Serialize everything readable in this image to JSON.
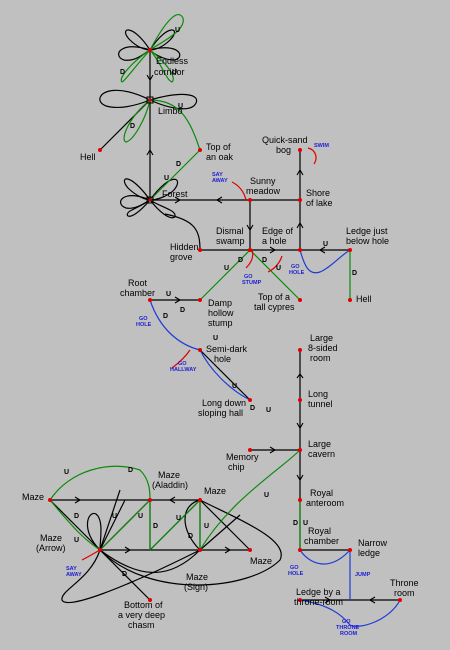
{
  "colors": {
    "background": "#c0c0c0",
    "passage": "#000000",
    "up_down_passage": "#0a8a0a",
    "special_action": "#1d3dd6",
    "location_dot": "#e00000"
  },
  "locations": [
    {
      "id": "endless-corridor",
      "label": [
        "Endless",
        "corridor"
      ]
    },
    {
      "id": "limbo",
      "label": [
        "Limbo"
      ]
    },
    {
      "id": "hell-top",
      "label": [
        "Hell"
      ]
    },
    {
      "id": "top-of-an-oak",
      "label": [
        "Top of",
        "an oak"
      ]
    },
    {
      "id": "quick-sand-bog",
      "label": [
        "Quick-sand",
        "bog"
      ]
    },
    {
      "id": "sunny-meadow",
      "label": [
        "Sunny",
        "meadow"
      ]
    },
    {
      "id": "forest",
      "label": [
        "Forest"
      ]
    },
    {
      "id": "shore-of-lake",
      "label": [
        "Shore",
        "of lake"
      ]
    },
    {
      "id": "dismal-swamp",
      "label": [
        "Dismal",
        "swamp"
      ]
    },
    {
      "id": "edge-of-a-hole",
      "label": [
        "Edge of",
        "a hole"
      ]
    },
    {
      "id": "ledge-below-hole",
      "label": [
        "Ledge just",
        "below hole"
      ]
    },
    {
      "id": "hidden-grove",
      "label": [
        "Hidden",
        "grove"
      ]
    },
    {
      "id": "root-chamber",
      "label": [
        "Root",
        "chamber"
      ]
    },
    {
      "id": "top-of-tall-cypres",
      "label": [
        "Top of a",
        "tall cypres"
      ]
    },
    {
      "id": "hell-right",
      "label": [
        "Hell"
      ]
    },
    {
      "id": "damp-hollow-stump",
      "label": [
        "Damp",
        "hollow",
        "stump"
      ]
    },
    {
      "id": "large-8-sided-room",
      "label": [
        "Large",
        "8-sided",
        "room"
      ]
    },
    {
      "id": "semi-dark-hole",
      "label": [
        "Semi-dark",
        "hole"
      ]
    },
    {
      "id": "long-tunnel",
      "label": [
        "Long",
        "tunnel"
      ]
    },
    {
      "id": "long-down-sloping-hall",
      "label": [
        "Long down",
        "sloping hall"
      ]
    },
    {
      "id": "large-cavern",
      "label": [
        "Large",
        "cavern"
      ]
    },
    {
      "id": "memory-chip",
      "label": [
        "Memory",
        "chip"
      ]
    },
    {
      "id": "maze-aladdin",
      "label": [
        "Maze",
        "(Aladdin)"
      ]
    },
    {
      "id": "maze-left",
      "label": [
        "Maze"
      ]
    },
    {
      "id": "maze-center",
      "label": [
        "Maze"
      ]
    },
    {
      "id": "royal-anteroom",
      "label": [
        "Royal",
        "anteroom"
      ]
    },
    {
      "id": "royal-chamber",
      "label": [
        "Royal",
        "chamber"
      ]
    },
    {
      "id": "maze-arrow",
      "label": [
        "Maze",
        "(Arrow)"
      ]
    },
    {
      "id": "narrow-ledge",
      "label": [
        "Narrow",
        "ledge"
      ]
    },
    {
      "id": "maze-right",
      "label": [
        "Maze"
      ]
    },
    {
      "id": "maze-sign",
      "label": [
        "Maze",
        "(Sign)"
      ]
    },
    {
      "id": "throne-room",
      "label": [
        "Throne",
        "room"
      ]
    },
    {
      "id": "ledge-by-throne-room",
      "label": [
        "Ledge by a",
        "throne-room"
      ]
    },
    {
      "id": "bottom-of-chasm",
      "label": [
        "Bottom of",
        "a very deep",
        "chasm"
      ]
    }
  ],
  "actions": [
    {
      "id": "say-away-forest",
      "label": [
        "SAY",
        "AWAY"
      ]
    },
    {
      "id": "swim",
      "label": [
        "SWIM"
      ]
    },
    {
      "id": "go-stump",
      "label": [
        "GO",
        "STUMP"
      ]
    },
    {
      "id": "go-hole-lake",
      "label": [
        "GO",
        "HOLE"
      ]
    },
    {
      "id": "go-hole-root",
      "label": [
        "GO",
        "HOLE"
      ]
    },
    {
      "id": "go-hallway",
      "label": [
        "GO",
        "HALLWAY"
      ]
    },
    {
      "id": "say-away-maze",
      "label": [
        "SAY",
        "AWAY"
      ]
    },
    {
      "id": "go-hole-royal",
      "label": [
        "GO",
        "HOLE"
      ]
    },
    {
      "id": "jump",
      "label": [
        "JUMP"
      ]
    },
    {
      "id": "go-throne-room",
      "label": [
        "GO",
        "THRONE",
        "ROOM"
      ]
    }
  ],
  "direction_marks": {
    "up": "U",
    "down": "D"
  }
}
